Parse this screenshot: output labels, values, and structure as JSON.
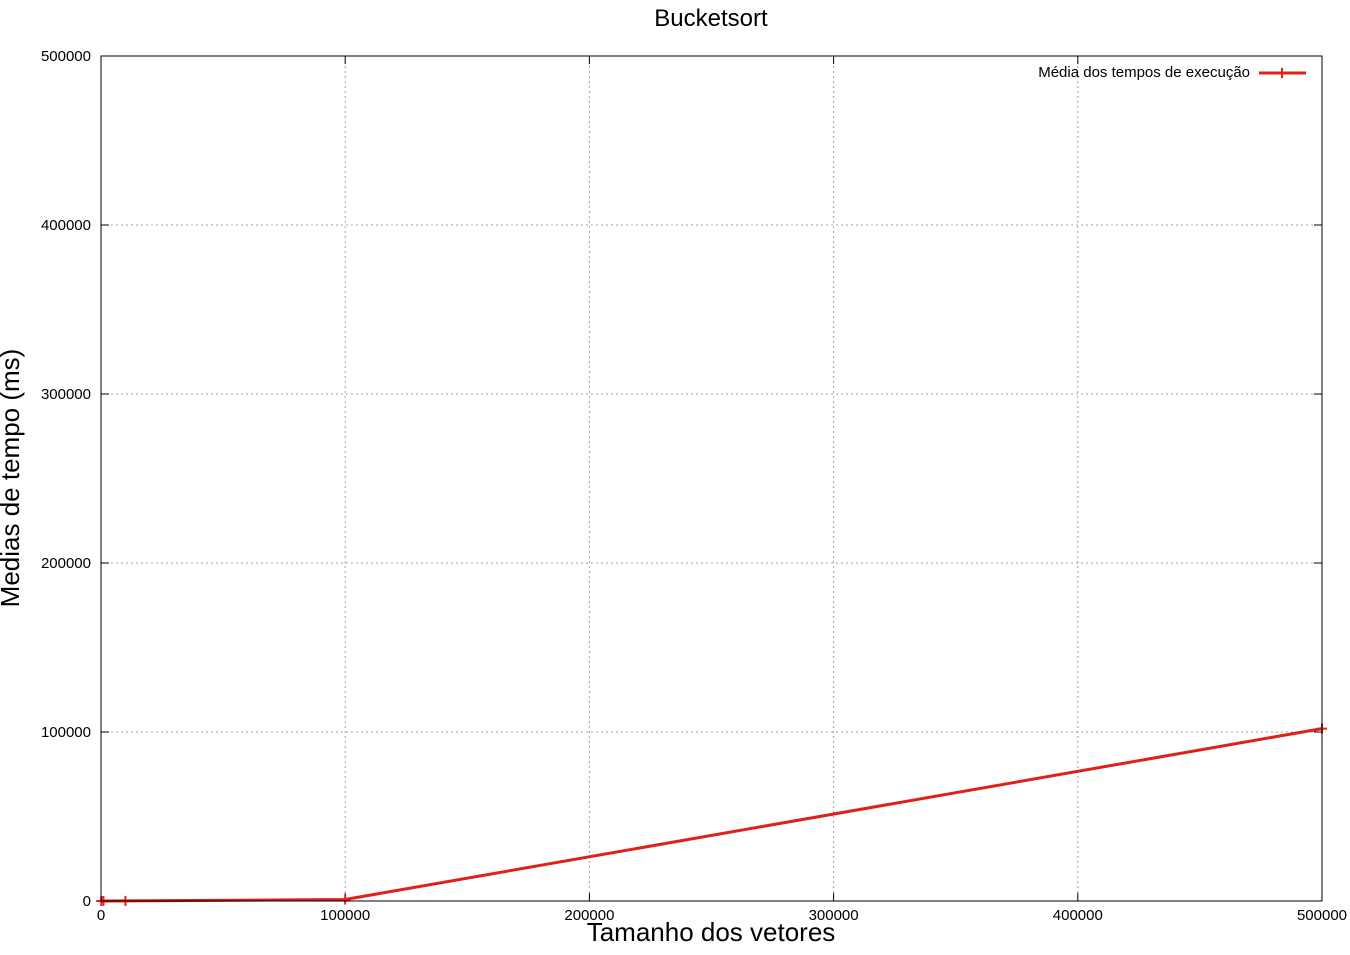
{
  "chart_data": {
    "type": "line",
    "title": "Bucketsort",
    "xlabel": "Tamanho dos vetores",
    "ylabel": "Medias de tempo (ms)",
    "xlim": [
      0,
      500000
    ],
    "ylim": [
      0,
      500000
    ],
    "xticks": [
      "0",
      "100000",
      "200000",
      "300000",
      "400000",
      "500000"
    ],
    "yticks": [
      "0",
      "100000",
      "200000",
      "300000",
      "400000",
      "500000"
    ],
    "grid": true,
    "legend_position": "top-right",
    "series": [
      {
        "name": "Média dos tempos de execução",
        "color": "#e0201a",
        "marker": "plus",
        "x": [
          100,
          1000,
          10000,
          100000,
          500000
        ],
        "y": [
          0,
          0,
          60,
          900,
          102000
        ]
      }
    ]
  }
}
